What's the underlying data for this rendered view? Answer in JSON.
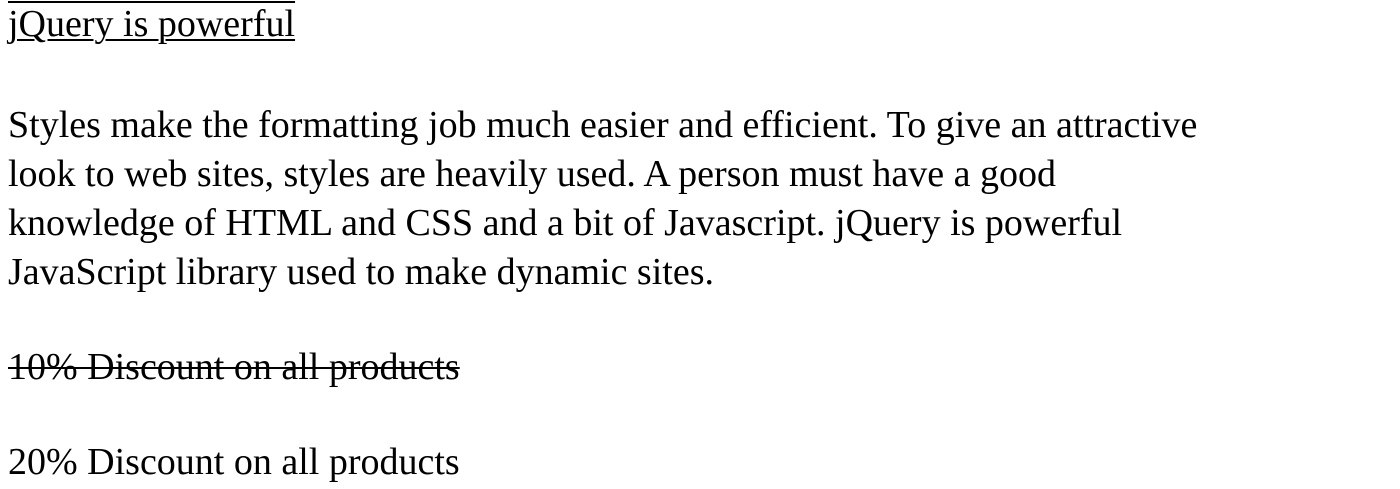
{
  "heading": {
    "text": "jQuery is powerful"
  },
  "paragraph": {
    "lines": [
      "Styles make the formatting job much easier and efficient. To give an attractive",
      "look to web sites, styles are heavily used. A person must have a good",
      "knowledge of HTML and CSS and a bit of Javascript. jQuery is powerful",
      "JavaScript library used to make dynamic sites."
    ]
  },
  "discounts": {
    "old_offer": "10% Discount on all products",
    "new_offer": "20% Discount on all products"
  }
}
